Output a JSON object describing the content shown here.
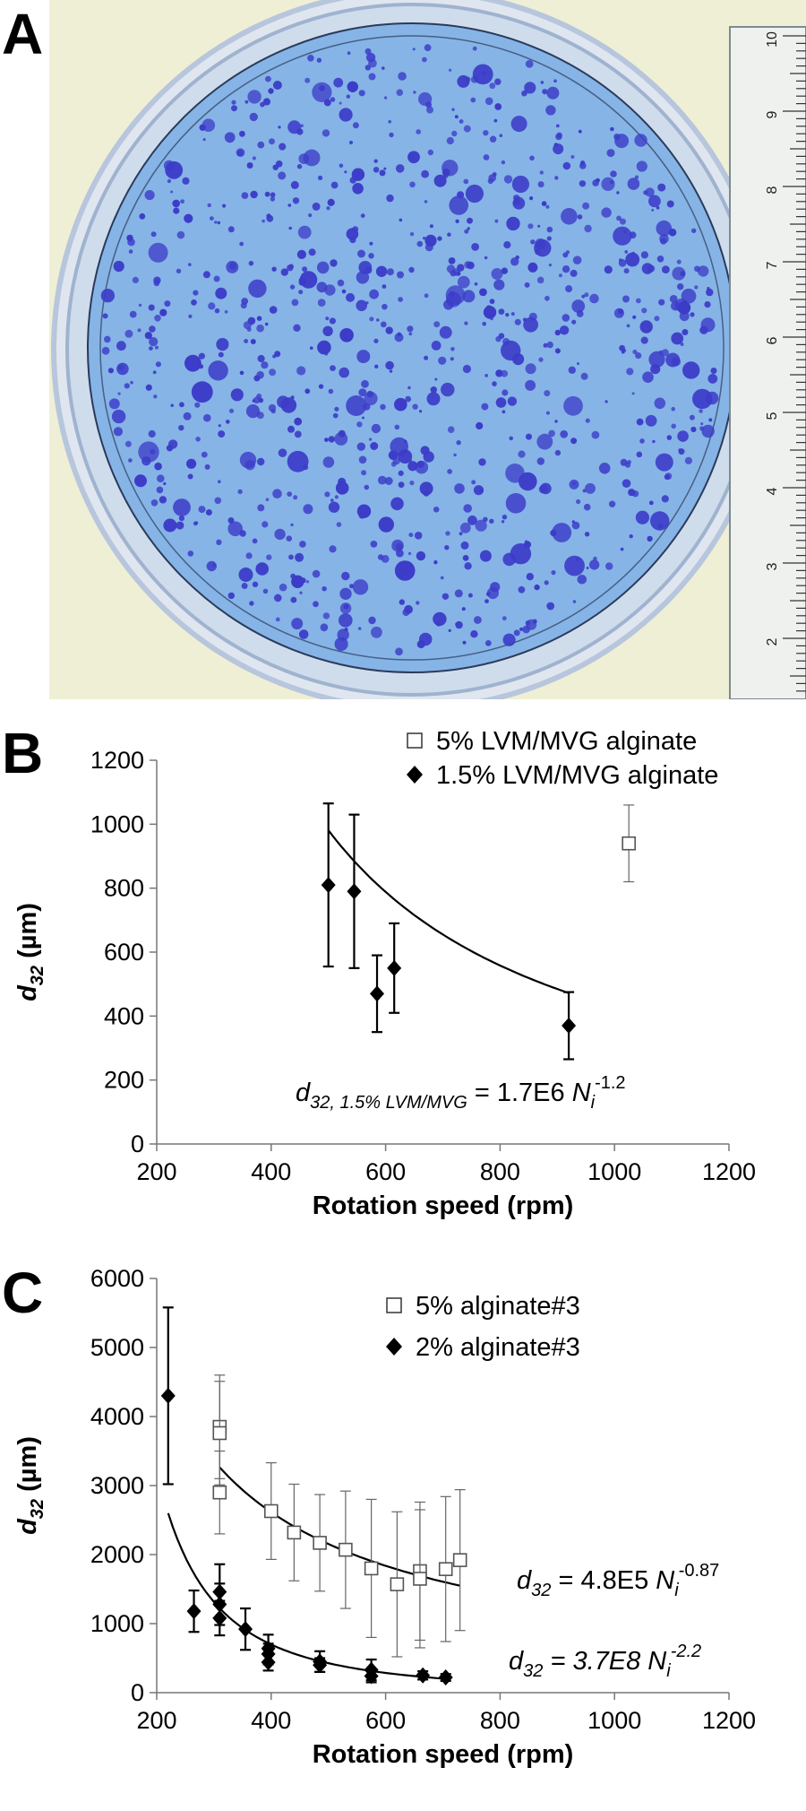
{
  "panels": {
    "a_letter": "A",
    "b_letter": "B",
    "c_letter": "C"
  },
  "photo": {
    "ruler_ticks": [
      "10",
      "9",
      "8",
      "7",
      "6",
      "5",
      "4",
      "3",
      "2"
    ],
    "colors": {
      "background": "#f3f2d6",
      "gel": "#86b4e6",
      "dots": "#3c3cc8",
      "dish_rim": "#c9d6e8"
    }
  },
  "chart_data": [
    {
      "type": "scatter",
      "xlabel": "Rotation speed (rpm)",
      "ylabel_main": "d",
      "ylabel_sub": "32",
      "ylabel_unit": " (µm)",
      "xlim": [
        200,
        1200
      ],
      "ylim": [
        0,
        1200
      ],
      "xticks": [
        200,
        400,
        600,
        800,
        1000,
        1200
      ],
      "yticks": [
        0,
        200,
        400,
        600,
        800,
        1000,
        1200
      ],
      "legend_position": "top-right",
      "series": [
        {
          "name": "5% LVM/MVG alginate",
          "marker": "open-square",
          "points": [
            {
              "x": 1025,
              "y": 940,
              "err": 120
            }
          ]
        },
        {
          "name": "1.5% LVM/MVG alginate",
          "marker": "filled-diamond",
          "points": [
            {
              "x": 500,
              "y": 810,
              "err": 255
            },
            {
              "x": 545,
              "y": 790,
              "err": 240
            },
            {
              "x": 585,
              "y": 470,
              "err": 120
            },
            {
              "x": 615,
              "y": 550,
              "err": 140
            },
            {
              "x": 920,
              "y": 370,
              "err": 105
            }
          ]
        }
      ],
      "fits": [
        {
          "series": "1.5% LVM/MVG alginate",
          "a": 1700000.0,
          "b": -1.2,
          "x_range": [
            500,
            920
          ]
        }
      ],
      "equations": [
        {
          "lhs_main": "d",
          "lhs_sub": "32, 1.5% LVM/MVG",
          "mid": " = 1.7E6 ",
          "var_main": "N",
          "var_sub": "i",
          "exp": "-1.2"
        }
      ]
    },
    {
      "type": "scatter",
      "xlabel": "Rotation speed (rpm)",
      "ylabel_main": "d",
      "ylabel_sub": "32",
      "ylabel_unit": " (µm)",
      "xlim": [
        200,
        1200
      ],
      "ylim": [
        0,
        6000
      ],
      "xticks": [
        200,
        400,
        600,
        800,
        1000,
        1200
      ],
      "yticks": [
        0,
        1000,
        2000,
        3000,
        4000,
        5000,
        6000
      ],
      "legend_position": "top-right",
      "series": [
        {
          "name": "5% alginate#3",
          "marker": "open-square",
          "points": [
            {
              "x": 310,
              "y": 3850,
              "err": 750
            },
            {
              "x": 310,
              "y": 3760,
              "err": 750
            },
            {
              "x": 310,
              "y": 2900,
              "err": 600
            },
            {
              "x": 400,
              "y": 2630,
              "err": 700
            },
            {
              "x": 440,
              "y": 2320,
              "err": 700
            },
            {
              "x": 485,
              "y": 2170,
              "err": 700
            },
            {
              "x": 530,
              "y": 2070,
              "err": 850
            },
            {
              "x": 575,
              "y": 1800,
              "err": 1000
            },
            {
              "x": 620,
              "y": 1570,
              "err": 1050
            },
            {
              "x": 660,
              "y": 1760,
              "err": 1000
            },
            {
              "x": 660,
              "y": 1650,
              "err": 1000
            },
            {
              "x": 705,
              "y": 1790,
              "err": 1050
            },
            {
              "x": 730,
              "y": 1920,
              "err": 1020
            }
          ]
        },
        {
          "name": "2% alginate#3",
          "marker": "filled-diamond",
          "points": [
            {
              "x": 220,
              "y": 4300,
              "err": 1280
            },
            {
              "x": 265,
              "y": 1180,
              "err": 300
            },
            {
              "x": 310,
              "y": 1460,
              "err": 400
            },
            {
              "x": 310,
              "y": 1280,
              "err": 300
            },
            {
              "x": 310,
              "y": 1080,
              "err": 250
            },
            {
              "x": 355,
              "y": 920,
              "err": 300
            },
            {
              "x": 395,
              "y": 640,
              "err": 200
            },
            {
              "x": 395,
              "y": 560,
              "err": 150
            },
            {
              "x": 395,
              "y": 440,
              "err": 120
            },
            {
              "x": 485,
              "y": 450,
              "err": 150
            },
            {
              "x": 485,
              "y": 400,
              "err": 100
            },
            {
              "x": 575,
              "y": 330,
              "err": 150
            },
            {
              "x": 575,
              "y": 240,
              "err": 90
            },
            {
              "x": 665,
              "y": 250,
              "err": 60
            },
            {
              "x": 705,
              "y": 220,
              "err": 50
            }
          ]
        }
      ],
      "fits": [
        {
          "series": "5% alginate#3",
          "a": 480000.0,
          "b": -0.87,
          "x_range": [
            310,
            730
          ]
        },
        {
          "series": "2% alginate#3",
          "a": 370000000.0,
          "b": -2.2,
          "x_range": [
            220,
            705
          ]
        }
      ],
      "equations": [
        {
          "lhs_main": "d",
          "lhs_sub": "32",
          "mid": " = 4.8E5 ",
          "var_main": "N",
          "var_sub": "i",
          "exp": "-0.87"
        },
        {
          "lhs_main": "d",
          "lhs_sub": "32",
          "mid": " = 3.7E8 ",
          "var_main": "N",
          "var_sub": "i",
          "exp": "-2.2"
        }
      ]
    }
  ]
}
